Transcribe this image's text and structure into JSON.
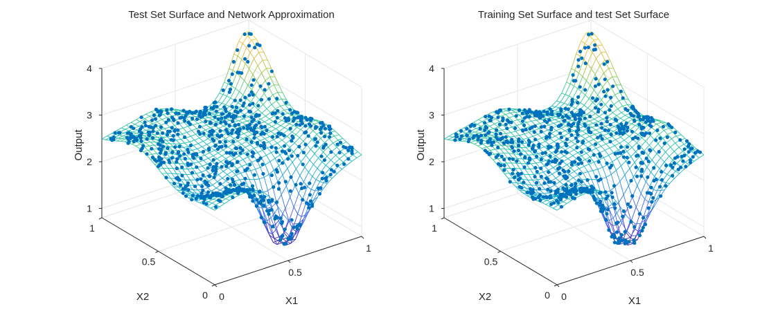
{
  "chart_data": [
    {
      "type": "surface",
      "title": "Test Set Surface and Network Approximation",
      "xlabel": "X1",
      "ylabel": "X2",
      "zlabel": "Output",
      "xlim": [
        0,
        1
      ],
      "ylim": [
        0,
        1
      ],
      "zlim": [
        0.8,
        4
      ],
      "x_ticks": [
        "0",
        "0.5",
        "1"
      ],
      "y_ticks": [
        "0",
        "0.5",
        "1"
      ],
      "z_ticks": [
        "1",
        "2",
        "3",
        "4"
      ],
      "grid": true,
      "series": [
        {
          "kind": "mesh",
          "colormap": "parula"
        },
        {
          "kind": "scatter3",
          "color": "#0072bd",
          "approx_points": 700
        }
      ]
    },
    {
      "type": "surface",
      "title": "Training Set Surface and test Set Surface",
      "xlabel": "X1",
      "ylabel": "X2",
      "zlabel": "Output",
      "xlim": [
        0,
        1
      ],
      "ylim": [
        0,
        1
      ],
      "zlim": [
        0.8,
        4
      ],
      "x_ticks": [
        "0",
        "0.5",
        "1"
      ],
      "y_ticks": [
        "0",
        "0.5",
        "1"
      ],
      "z_ticks": [
        "1",
        "2",
        "3",
        "4"
      ],
      "grid": true,
      "series": [
        {
          "kind": "mesh",
          "colormap": "parula"
        },
        {
          "kind": "scatter3",
          "color": "#0072bd",
          "approx_points": 700
        }
      ]
    }
  ]
}
